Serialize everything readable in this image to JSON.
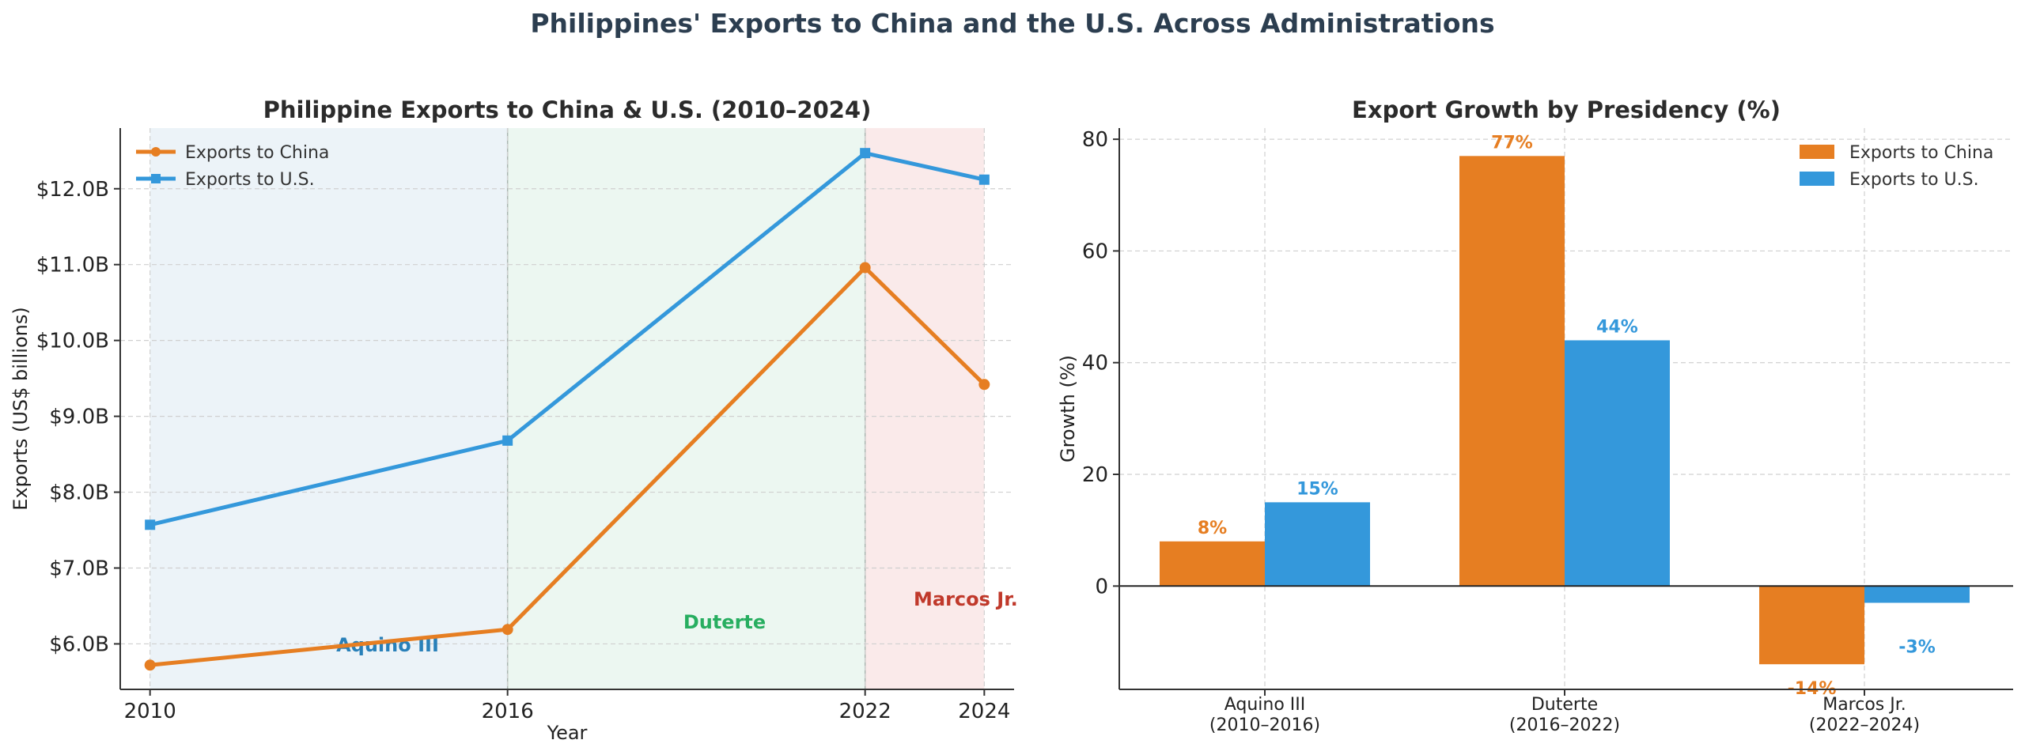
{
  "page_title": "Philippines' Exports to China and the U.S. Across Administrations",
  "colors": {
    "china": "#e67e22",
    "us": "#3498db",
    "aquino": "#2980b9",
    "duterte": "#27ae60",
    "marcos": "#c0392b"
  },
  "chart_data": [
    {
      "type": "line",
      "title": "Philippine Exports to China & U.S. (2010–2024)",
      "xlabel": "Year",
      "ylabel": "Exports (US$ billions)",
      "x": [
        2010,
        2016,
        2022,
        2024
      ],
      "x_tick_labels": [
        "2010",
        "2016",
        "2022",
        "2024"
      ],
      "xlim": [
        2009.5,
        2024.5
      ],
      "ylim": [
        5.4,
        12.8
      ],
      "y_ticks": [
        6,
        7,
        8,
        9,
        10,
        11,
        12
      ],
      "y_tick_labels": [
        "$6.0B",
        "$7.0B",
        "$8.0B",
        "$9.0B",
        "$10.0B",
        "$11.0B",
        "$12.0B"
      ],
      "series": [
        {
          "name": "Exports to China",
          "values": [
            5.72,
            6.19,
            10.96,
            9.42
          ]
        },
        {
          "name": "Exports to U.S.",
          "values": [
            7.57,
            8.68,
            12.47,
            12.12
          ]
        }
      ],
      "eras": [
        {
          "name": "Aquino III",
          "start": 2010,
          "end": 2016
        },
        {
          "name": "Duterte",
          "start": 2016,
          "end": 2022
        },
        {
          "name": "Marcos Jr.",
          "start": 2022,
          "end": 2024
        }
      ],
      "legend": "top-left",
      "grid": true
    },
    {
      "type": "bar",
      "title": "Export Growth by Presidency (%)",
      "xlabel": "",
      "ylabel": "Growth (%)",
      "categories": [
        "Aquino III\n(2010–2016)",
        "Duterte\n(2016–2022)",
        "Marcos Jr.\n(2022–2024)"
      ],
      "ylim": [
        -18.5,
        82
      ],
      "y_ticks": [
        0,
        20,
        40,
        60,
        80
      ],
      "y_tick_labels": [
        "0",
        "20",
        "40",
        "60",
        "80"
      ],
      "series": [
        {
          "name": "Exports to China",
          "values": [
            8,
            77,
            -14
          ],
          "labels": [
            "8%",
            "77%",
            "-14%"
          ]
        },
        {
          "name": "Exports to U.S.",
          "values": [
            15,
            44,
            -3
          ],
          "labels": [
            "15%",
            "44%",
            "-3%"
          ]
        }
      ],
      "legend": "top-right",
      "grid": true
    }
  ]
}
